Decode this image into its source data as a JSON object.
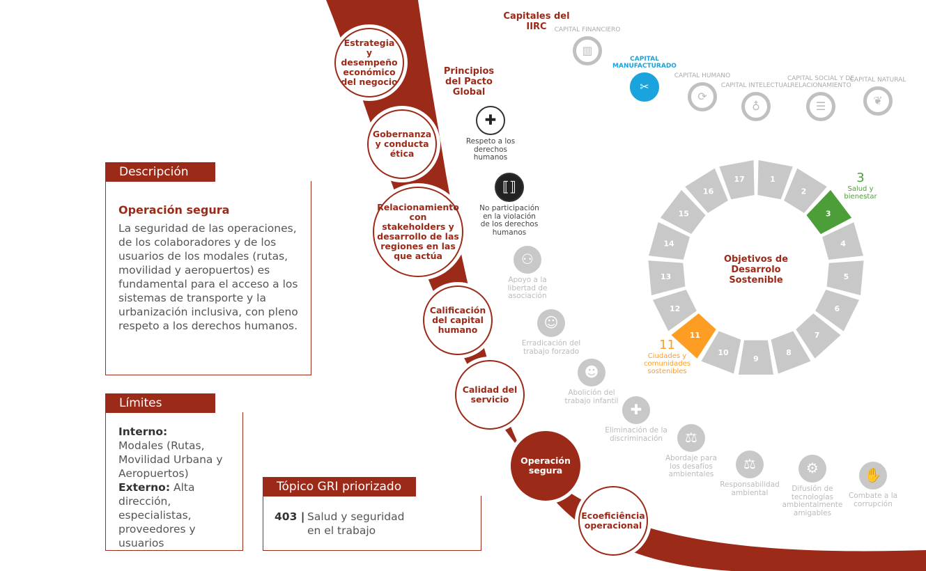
{
  "capitals": {
    "title": "Capitales del IIRC",
    "items": [
      {
        "label": "CAPITAL FINANCIERO",
        "icon": "chart-growth-icon",
        "active": false
      },
      {
        "label": "CAPITAL MANUFACTURADO",
        "icon": "tools-icon",
        "active": true
      },
      {
        "label": "CAPITAL HUMANO",
        "icon": "people-circle-icon",
        "active": false
      },
      {
        "label": "CAPITAL INTELECTUAL",
        "icon": "lightbulb-icon",
        "active": false
      },
      {
        "label": "CAPITAL SOCIAL Y DE RELACIONAMIENTO",
        "icon": "speech-bubble-icon",
        "active": false
      },
      {
        "label": "CAPITAL NATURAL",
        "icon": "leaf-globe-icon",
        "active": false
      }
    ]
  },
  "topics": [
    {
      "label": "Estrategia y desempeño económico del negocio",
      "active": false
    },
    {
      "label": "Gobernanza y conducta ética",
      "active": false
    },
    {
      "label": "Relacionamiento con stakeholders y desarrollo de las regiones en las que actúa",
      "active": false
    },
    {
      "label": "Calificación del capital humano",
      "active": false
    },
    {
      "label": "Calidad del servicio",
      "active": false
    },
    {
      "label": "Operación segura",
      "active": true
    },
    {
      "label": "Ecoeficiência operacional",
      "active": false
    }
  ],
  "pacto": {
    "title": "Principios del Pacto Global",
    "items": [
      {
        "label": "Respeto a los derechos humanos",
        "icon": "person-plus-icon",
        "active": true
      },
      {
        "label": "No participación en la violación de los derechos humanos",
        "icon": "person-brackets-icon",
        "active": true
      },
      {
        "label": "Apoyo a la libertad de asociación",
        "icon": "group-icon",
        "active": false
      },
      {
        "label": "Erradicación del trabajo forzado",
        "icon": "person-icon",
        "active": false
      },
      {
        "label": "Abolición del trabajo infantil",
        "icon": "child-icon",
        "active": false
      },
      {
        "label": "Eliminación de la discriminación",
        "icon": "person-plus-icon",
        "active": false
      },
      {
        "label": "Abordaje para los desafíos ambientales",
        "icon": "balance-icon",
        "active": false
      },
      {
        "label": "Responsabilidad ambiental",
        "icon": "balance-person-icon",
        "active": false
      },
      {
        "label": "Difusión de tecnologías ambientalmente amigables",
        "icon": "gears-icon",
        "active": false
      },
      {
        "label": "Combate a la corrupción",
        "icon": "person-refuse-icon",
        "active": false
      }
    ]
  },
  "sdg": {
    "title": "Objetivos de Desarrolo Sostenible",
    "grey": "#c8c8c8",
    "goals": [
      "1",
      "2",
      "3",
      "4",
      "5",
      "6",
      "7",
      "8",
      "9",
      "10",
      "11",
      "12",
      "13",
      "14",
      "15",
      "16",
      "17"
    ],
    "highlighted": [
      {
        "number": "3",
        "label": "Salud y bienestar",
        "color": "#4c9f38"
      },
      {
        "number": "11",
        "label": "Ciudades y comunidades sostenibles",
        "color": "#fd9d24"
      }
    ]
  },
  "descripcion": {
    "header": "Descripción",
    "title": "Operación segura",
    "text": "La seguridad de las operaciones, de los colaboradores y de los usuarios de los modales (rutas, movilidad y aeropuertos) es fundamental para el acceso a los sistemas de transporte y la urbanización inclusiva, con pleno respeto a los derechos humanos."
  },
  "limites": {
    "header": "Límites",
    "internal_label": "Interno:",
    "internal": "Modales (Rutas, Movilidad Urbana y Aeropuertos)",
    "external_label": "Externo:",
    "external": "Alta dirección, especialistas, proveedores y usuarios"
  },
  "gri": {
    "header": "Tópico GRI priorizado",
    "code": "403 |",
    "text": "Salud y seguridad en el trabajo"
  },
  "colors": {
    "brand_red": "#9c2a18",
    "manufactured_blue": "#1aa3dd"
  }
}
